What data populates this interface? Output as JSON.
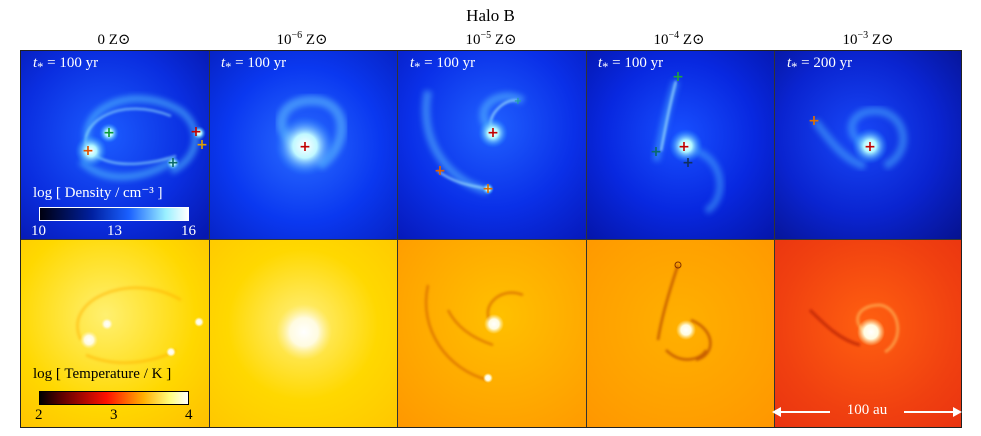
{
  "title": "Halo B",
  "columns": [
    {
      "metal_base": "0",
      "metal_exp": "",
      "unit": " Z⊙",
      "time_label": "= 100 yr"
    },
    {
      "metal_base": "10",
      "metal_exp": "−6",
      "unit": " Z⊙",
      "time_label": "= 100 yr"
    },
    {
      "metal_base": "10",
      "metal_exp": "−5",
      "unit": " Z⊙",
      "time_label": "= 100 yr"
    },
    {
      "metal_base": "10",
      "metal_exp": "−4",
      "unit": " Z⊙",
      "time_label": "= 100 yr"
    },
    {
      "metal_base": "10",
      "metal_exp": "−3",
      "unit": " Z⊙",
      "time_label": "= 200 yr"
    }
  ],
  "time_symbol": "t",
  "time_sub": "*",
  "density_colorbar": {
    "label": "log [ Density / cm⁻³ ]",
    "ticks": [
      "10",
      "13",
      "16"
    ]
  },
  "temperature_colorbar": {
    "label": "log [ Temperature / K ]",
    "ticks": [
      "2",
      "3",
      "4"
    ]
  },
  "scale_bar": {
    "label": "100 au"
  },
  "colors": {
    "density_low": "#000010",
    "density_mid": "#1030ff",
    "density_high": "#e8ffff",
    "temp_low": "#000000",
    "temp_mid": "#ff2000",
    "temp_high": "#ffffff"
  }
}
